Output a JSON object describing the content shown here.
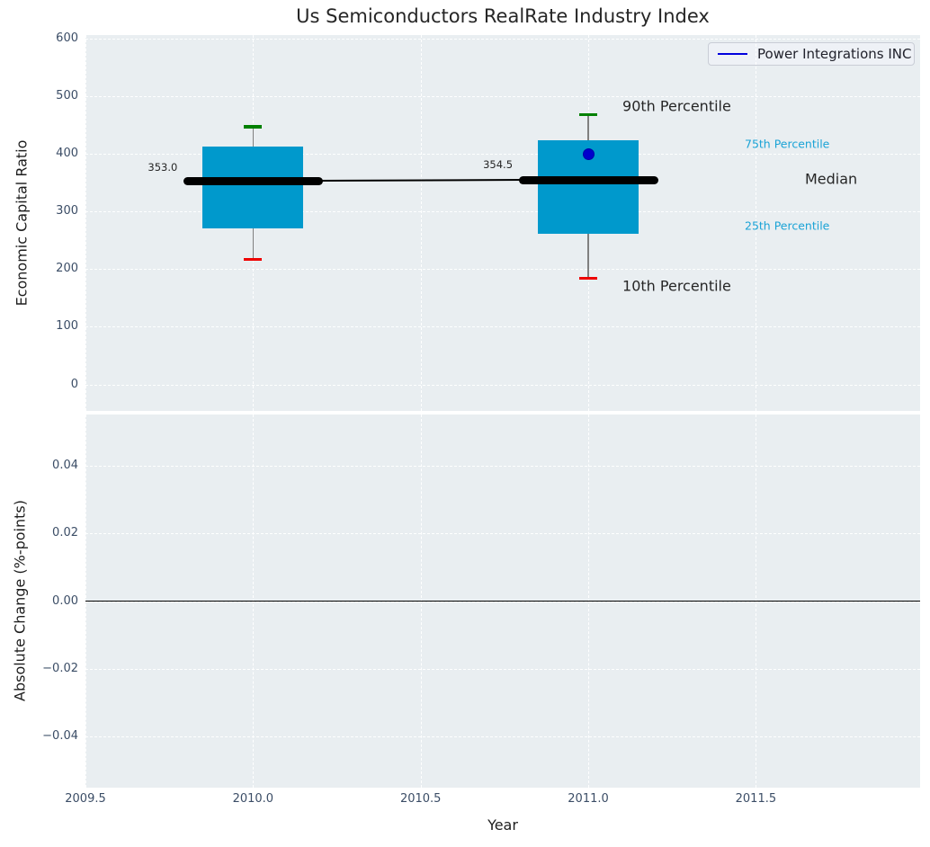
{
  "title": "Us Semiconductors RealRate Industry Index",
  "legend": {
    "label": "Power Integrations INC"
  },
  "colors": {
    "box_fill": "#0099cc",
    "median_line": "#000000",
    "whisker": "#808080",
    "cap_high": "#008000",
    "cap_low": "#ee0000",
    "series_blue": "#0000cc",
    "plot_bg": "#e9eef1",
    "grid": "#ffffff",
    "tick_label": "#3b4d66",
    "percentile_label": "#1ba3d6",
    "text_dark": "#262626"
  },
  "xaxis": {
    "label": "Year",
    "ticks": [
      2009.5,
      2010.0,
      2010.5,
      2011.0,
      2011.5
    ],
    "tick_labels": [
      "2009.5",
      "2010.0",
      "2010.5",
      "2011.0",
      "2011.5"
    ]
  },
  "chart_data": [
    {
      "type": "box",
      "title": "Us Semiconductors RealRate Industry Index",
      "xlabel": "Year",
      "ylabel": "Economic Capital Ratio",
      "ylim": [
        -46,
        606
      ],
      "xlim": [
        2009.5,
        2011.99
      ],
      "grid": true,
      "legend_position": "upper right",
      "yticks": [
        0,
        100,
        200,
        300,
        400,
        500,
        600
      ],
      "ytick_labels": [
        "0",
        "100",
        "200",
        "300",
        "400",
        "500",
        "600"
      ],
      "categories": [
        2010,
        2011
      ],
      "boxes": [
        {
          "x": 2010,
          "median": 353.0,
          "median_label": "353.0",
          "q1": 270,
          "q3": 412,
          "whisker_low": 217,
          "whisker_high": 447
        },
        {
          "x": 2011,
          "median": 354.5,
          "median_label": "354.5",
          "q1": 262,
          "q3": 424,
          "whisker_low": 184,
          "whisker_high": 468
        }
      ],
      "median_trend": {
        "x": [
          2010,
          2011
        ],
        "y": [
          353.0,
          354.5
        ]
      },
      "series": [
        {
          "name": "Power Integrations INC",
          "x": [
            2011
          ],
          "y": [
            400
          ],
          "style": "point",
          "color": "#0000cc"
        }
      ],
      "annotations": [
        {
          "text": "90th Percentile",
          "anchor": "whisker_high_2011",
          "color": "dark",
          "size": 16
        },
        {
          "text": "10th Percentile",
          "anchor": "whisker_low_2011",
          "color": "dark",
          "size": 16
        },
        {
          "text": "75th Percentile",
          "anchor": "q3_right",
          "color": "cyan",
          "size": 12.5
        },
        {
          "text": "Median",
          "anchor": "median_right",
          "color": "dark",
          "size": 16
        },
        {
          "text": "25th Percentile",
          "anchor": "q1_right",
          "color": "cyan",
          "size": 12.5
        },
        {
          "text": "353.0",
          "anchor": "median_label_2010",
          "color": "dark",
          "size": 11.5
        },
        {
          "text": "354.5",
          "anchor": "median_label_2011",
          "color": "dark",
          "size": 11.5
        }
      ]
    },
    {
      "type": "line",
      "xlabel": "Year",
      "ylabel": "Absolute Change (%-points)",
      "ylim": [
        -0.055,
        0.055
      ],
      "yticks": [
        -0.04,
        -0.02,
        0.0,
        0.02,
        0.04
      ],
      "ytick_labels": [
        "−0.04",
        "−0.02",
        "0.00",
        "0.02",
        "0.04"
      ],
      "grid": true,
      "zero_line": true,
      "series": []
    }
  ]
}
